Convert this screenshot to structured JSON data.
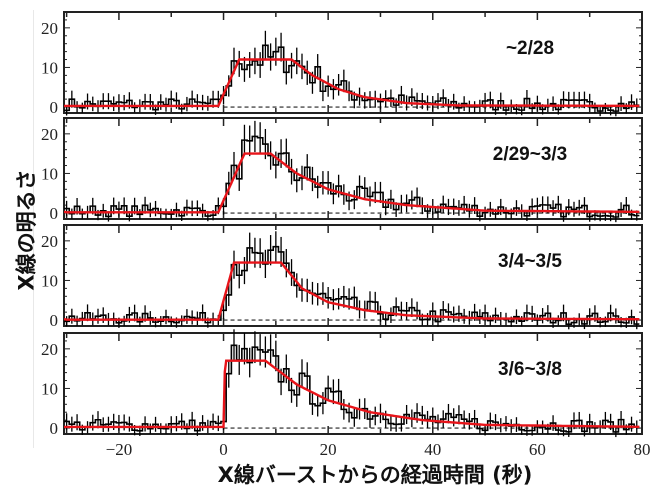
{
  "figure": {
    "ylabel": "X線の明るさ",
    "xlabel": "X線バーストからの経過時間 (秒)",
    "x_ticks": [
      -20,
      0,
      20,
      40,
      60,
      80
    ],
    "y_ticks": [
      0,
      10,
      20
    ],
    "colors": {
      "data": "#000000",
      "model": "#e8141a",
      "baseline": "#000000"
    }
  },
  "chart_data": [
    {
      "type": "line",
      "panel": 1,
      "annotation": "~2/28",
      "xlabel": "X線バーストからの経過時間 (秒)",
      "ylabel": "X線の明るさ",
      "xlim": [
        -30.5,
        80
      ],
      "ylim": [
        -1.5,
        24
      ],
      "model": {
        "x": [
          -30,
          -1,
          3,
          13,
          17,
          22,
          27,
          35,
          45,
          80
        ],
        "y": [
          0.3,
          0.3,
          12,
          12,
          8,
          4.5,
          2.5,
          1,
          0.4,
          0.3
        ]
      },
      "data_description": "Histogram light curve with error bars; flat ~1 before t=0, plateau ~12-15 between 3 and 15 s, decaying to ~0 by 35 s"
    },
    {
      "type": "line",
      "panel": 2,
      "annotation": "2/29~3/3",
      "xlim": [
        -30.5,
        80
      ],
      "ylim": [
        -1.5,
        24
      ],
      "model": {
        "x": [
          -30,
          -1,
          4,
          9,
          14,
          20,
          27,
          35,
          50,
          80
        ],
        "y": [
          0.2,
          0.2,
          15,
          15,
          10,
          6,
          3.5,
          2,
          0.6,
          0.3
        ]
      },
      "data_description": "Rise at 0 s to peak ~20 at ~4 s, plateau ~15, slower decay to ~0 by 50 s"
    },
    {
      "type": "line",
      "panel": 3,
      "annotation": "3/4~3/5",
      "xlim": [
        -30.5,
        80
      ],
      "ylim": [
        -1.5,
        24
      ],
      "model": {
        "x": [
          -30,
          -1,
          2,
          11,
          15,
          20,
          27,
          35,
          50,
          80
        ],
        "y": [
          0.1,
          0.1,
          14.5,
          14.5,
          8,
          4.5,
          2.5,
          1.2,
          0.4,
          0.2
        ]
      },
      "data_description": "Sharp rise at 0 s to ~15 plateau, data peaks ~20 at ~10 s, decay to ~0 by 40 s"
    },
    {
      "type": "line",
      "panel": 4,
      "annotation": "3/6~3/8",
      "xlim": [
        -30.5,
        80
      ],
      "ylim": [
        -1.5,
        24
      ],
      "model": {
        "x": [
          -30,
          0,
          0.3,
          8,
          14,
          20,
          28,
          38,
          50,
          80
        ],
        "y": [
          0.3,
          0.3,
          17,
          17,
          11,
          7,
          4,
          2,
          0.8,
          0.3
        ]
      },
      "data_description": "Instant rise at 0 s to ~20, plateau ~17 to 8 s, decay to ~0 by 50 s; small bump ~4 at 42 s"
    }
  ]
}
